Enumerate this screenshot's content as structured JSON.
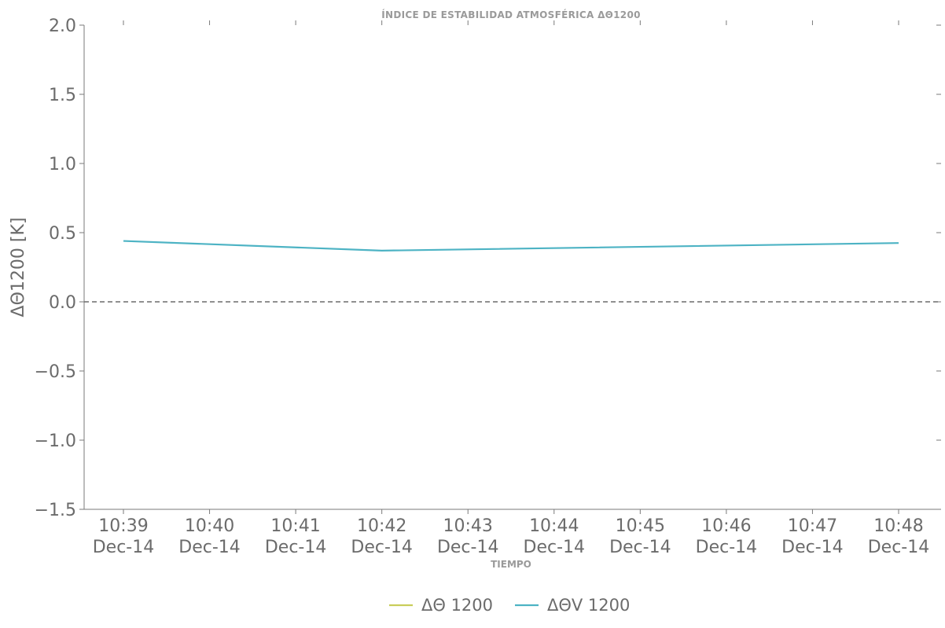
{
  "chart_data": {
    "type": "line",
    "title": "ÍNDICE DE ESTABILIDAD ATMOSFÉRICA ΔΘ1200",
    "xlabel": "TIEMPO",
    "ylabel": "ΔΘ1200 [K]",
    "ylim": [
      -1.5,
      2.0
    ],
    "yticks": [
      2.0,
      1.5,
      1.0,
      0.5,
      0.0,
      -0.5,
      -1.0,
      -1.5
    ],
    "ytick_labels": [
      "2.0",
      "1.5",
      "1.0",
      "0.5",
      "0.0",
      "−0.5",
      "−1.0",
      "−1.5"
    ],
    "x": [
      "10:39",
      "10:40",
      "10:41",
      "10:42",
      "10:43",
      "10:44",
      "10:45",
      "10:46",
      "10:47",
      "10:48"
    ],
    "xtick_labels": [
      [
        "10:39",
        "Dec-14"
      ],
      [
        "10:40",
        "Dec-14"
      ],
      [
        "10:41",
        "Dec-14"
      ],
      [
        "10:42",
        "Dec-14"
      ],
      [
        "10:43",
        "Dec-14"
      ],
      [
        "10:44",
        "Dec-14"
      ],
      [
        "10:45",
        "Dec-14"
      ],
      [
        "10:46",
        "Dec-14"
      ],
      [
        "10:47",
        "Dec-14"
      ],
      [
        "10:48",
        "Dec-14"
      ]
    ],
    "reference_line": {
      "y": 0.0,
      "style": "dashed",
      "color": "#6b6b6b"
    },
    "grid": false,
    "legend_placement": "bottom-center",
    "series": [
      {
        "name": "ΔΘ 1200",
        "color": "#c9cd5a",
        "points": []
      },
      {
        "name": "ΔΘV 1200",
        "color": "#4db3c4",
        "points": [
          {
            "x": "10:39",
            "y": 0.44
          },
          {
            "x": "10:42",
            "y": 0.37
          },
          {
            "x": "10:48",
            "y": 0.425
          }
        ]
      }
    ]
  }
}
